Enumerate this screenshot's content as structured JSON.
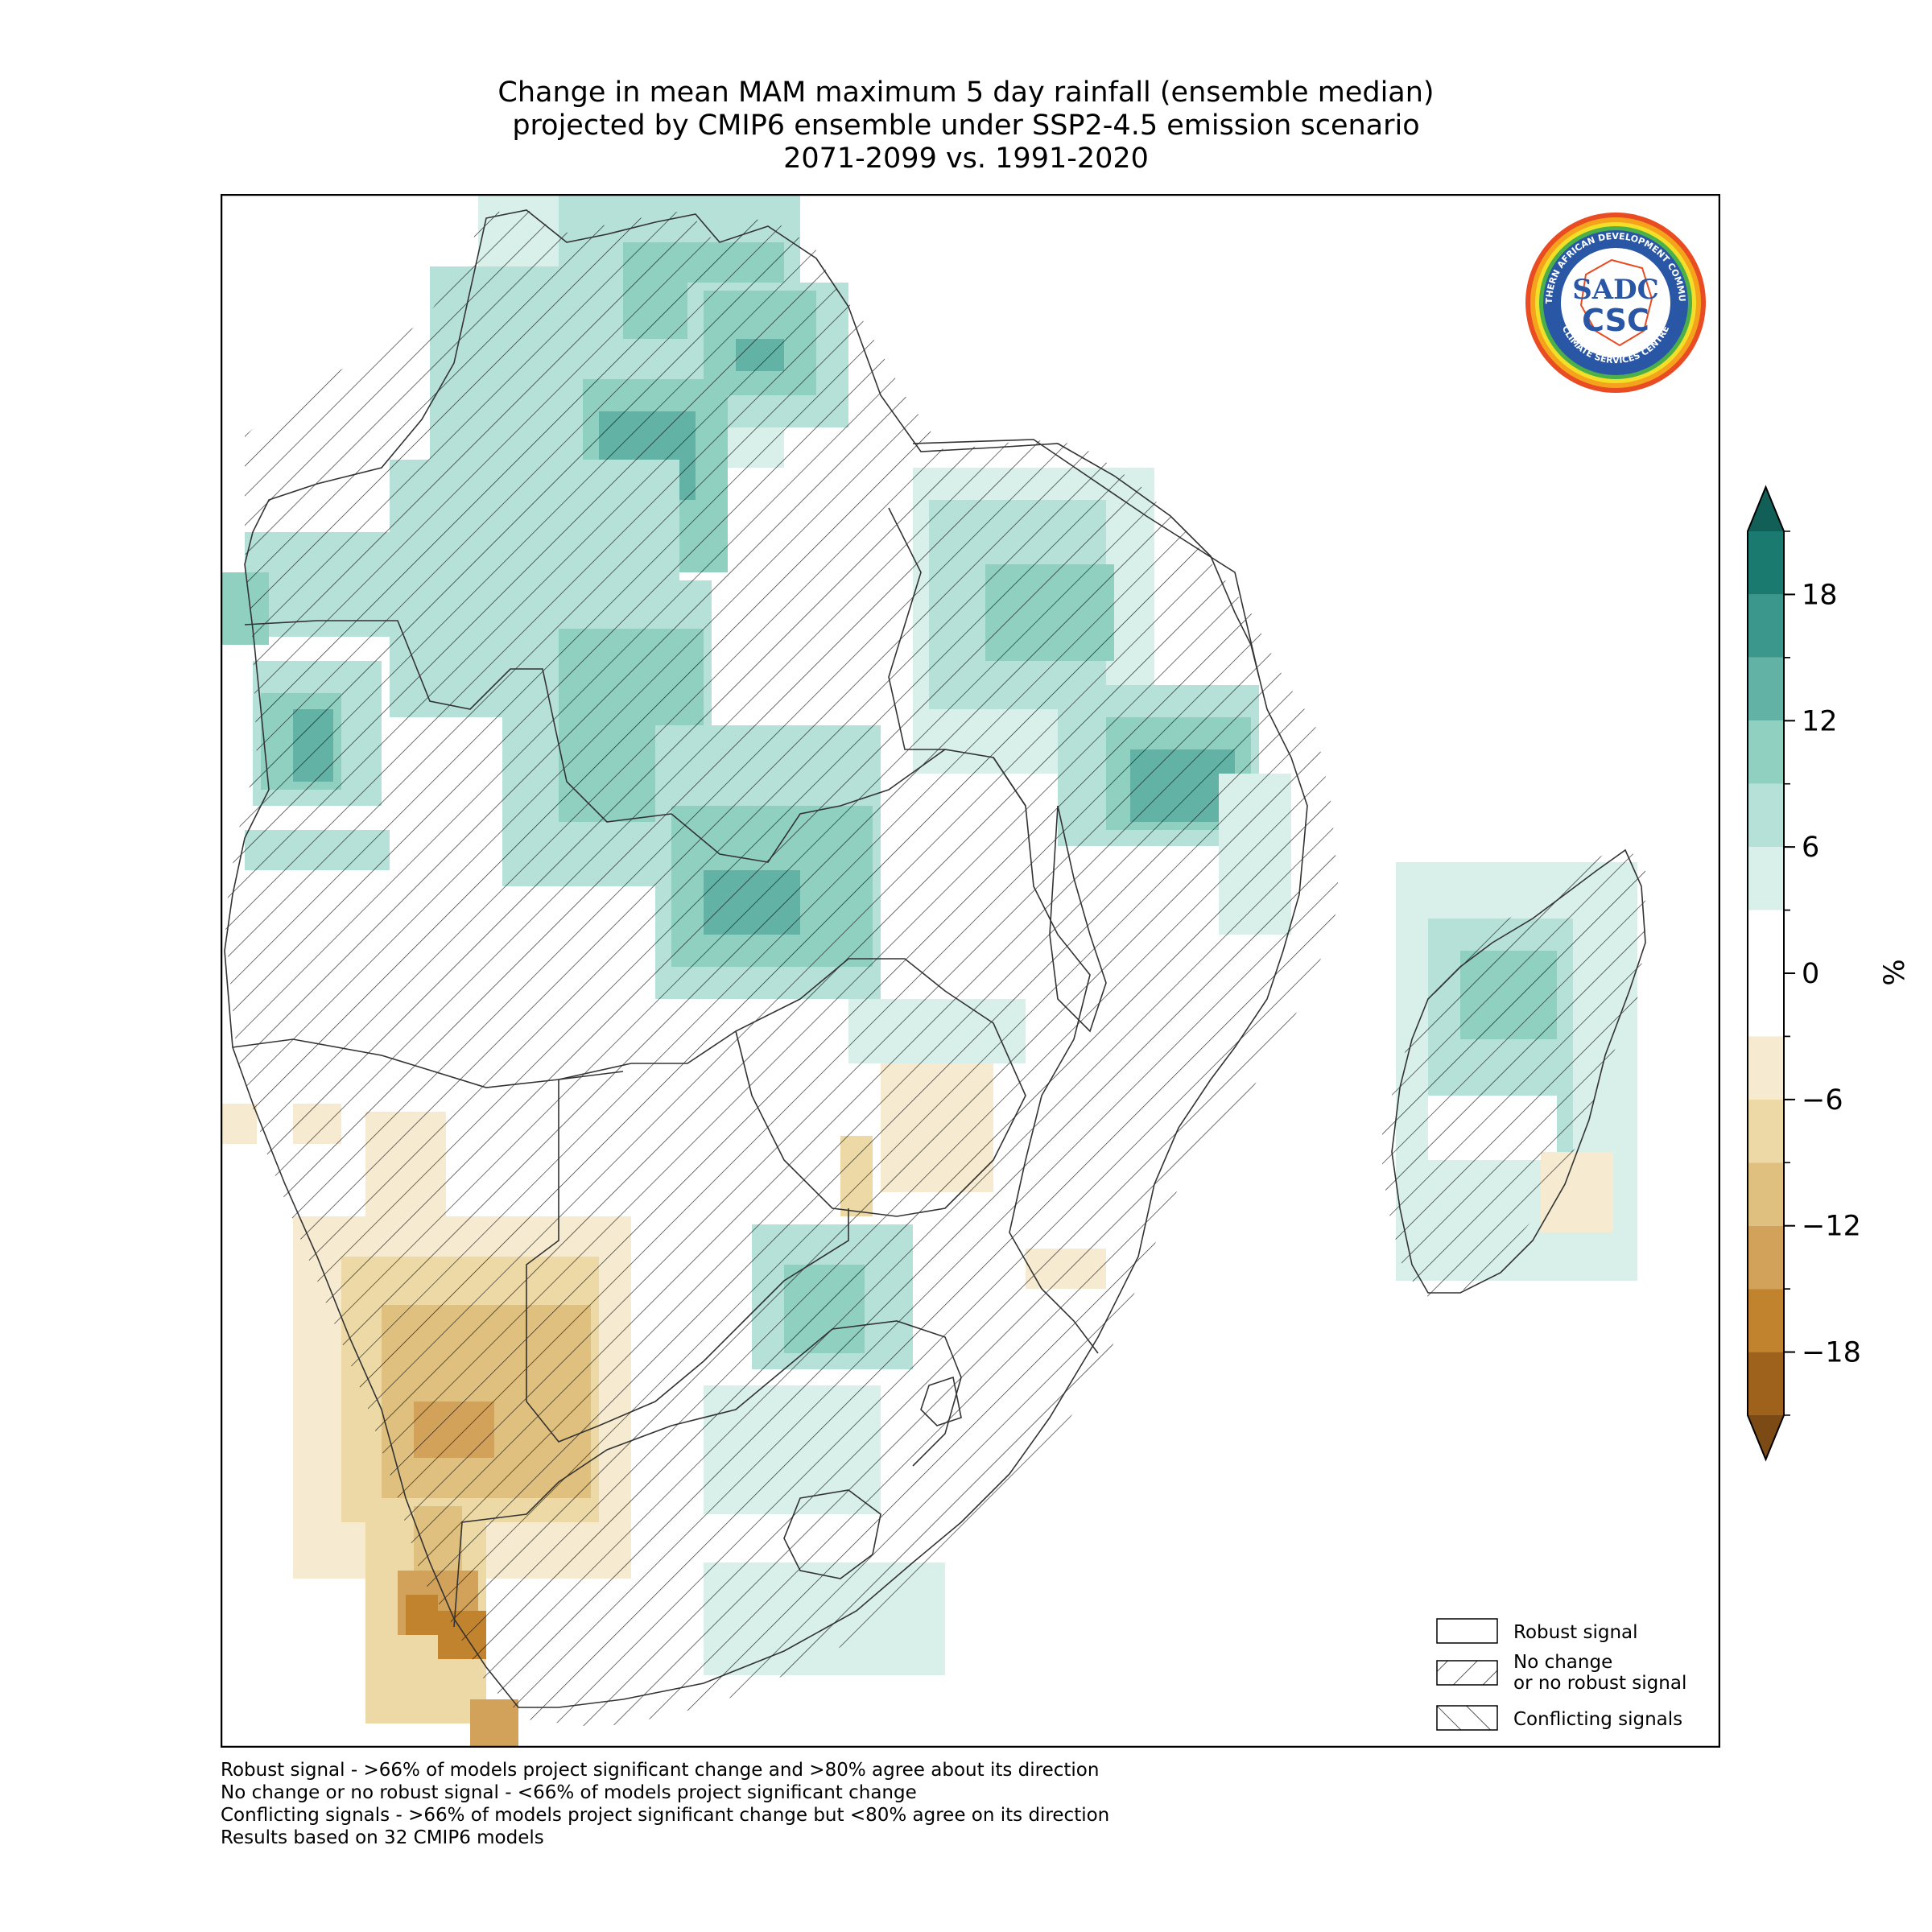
{
  "title": {
    "line1": "Change in mean MAM maximum 5 day rainfall (ensemble median)",
    "line2": "projected by CMIP6 ensemble under SSP2-4.5 emission scenario",
    "line3": "2071-2099 vs. 1991-2020"
  },
  "colorbar": {
    "unit": "%",
    "tick_labels": [
      "18",
      "12",
      "6",
      "0",
      "−6",
      "−12",
      "−18"
    ],
    "tick_values": [
      18,
      12,
      6,
      0,
      -6,
      -12,
      -18
    ],
    "bins": [
      {
        "from": 18,
        "to": 21,
        "color": "#1a7a70"
      },
      {
        "from": 15,
        "to": 18,
        "color": "#3b978b"
      },
      {
        "from": 12,
        "to": 15,
        "color": "#62b3a5"
      },
      {
        "from": 9,
        "to": 12,
        "color": "#8fd0c1"
      },
      {
        "from": 6,
        "to": 9,
        "color": "#b6e1d8"
      },
      {
        "from": 3,
        "to": 6,
        "color": "#d8efea"
      },
      {
        "from": -3,
        "to": 3,
        "color": "#ffffff"
      },
      {
        "from": -6,
        "to": -3,
        "color": "#f6ead0"
      },
      {
        "from": -9,
        "to": -6,
        "color": "#ecd9a6"
      },
      {
        "from": -12,
        "to": -9,
        "color": "#dfc07f"
      },
      {
        "from": -15,
        "to": -12,
        "color": "#d3a25a"
      },
      {
        "from": -18,
        "to": -15,
        "color": "#c2832e"
      },
      {
        "from": -21,
        "to": -18,
        "color": "#9e621d"
      }
    ],
    "extend_max_color": "#125f58",
    "extend_min_color": "#7c4a14"
  },
  "legend": {
    "robust": "Robust signal",
    "no_change_1": "No change",
    "no_change_2": "or no robust signal",
    "conflicting": "Conflicting signals"
  },
  "footnotes": {
    "line1": "Robust signal - >66% of models project significant change and >80% agree about its direction",
    "line2": "No change or no robust signal - <66% of models project significant change",
    "line3": "Conflicting signals - >66% of models project significant change but <80% agree on its direction",
    "line4": "Results based on 32 CMIP6 models"
  },
  "logo": {
    "text_top": "SOUTHERN AFRICAN DEVELOPMENT COMMUNITY",
    "text_bottom": "CLIMATE SERVICES CENTRE",
    "mark1": "SADC",
    "mark2": "CSC"
  }
}
